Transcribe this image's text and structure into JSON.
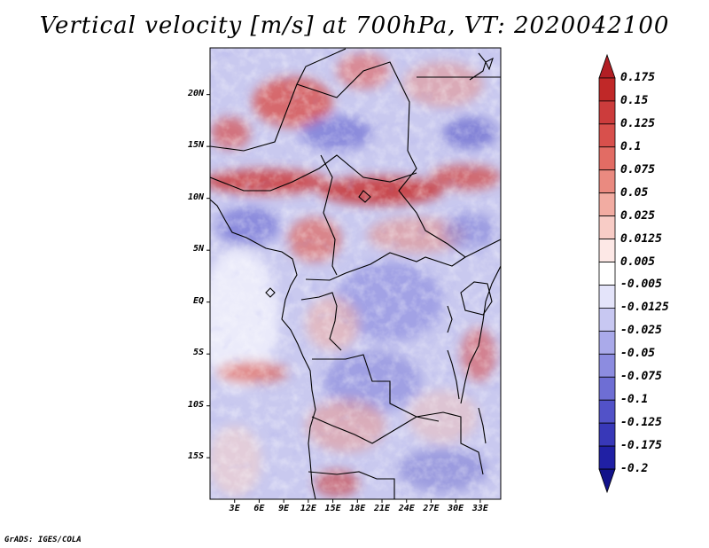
{
  "title": "Vertical velocity [m/s] at 700hPa, VT: 2020042100",
  "credit": "GrADS: IGES/COLA",
  "map": {
    "variable": "Vertical velocity",
    "units": "m/s",
    "level": "700hPa",
    "valid_time": "2020042100",
    "lat_range": [
      -19,
      24.5
    ],
    "lon_range": [
      0,
      35.5
    ],
    "lat_labels": [
      "20N",
      "15N",
      "10N",
      "5N",
      "EQ",
      "5S",
      "10S",
      "15S"
    ],
    "lon_labels": [
      "3E",
      "6E",
      "9E",
      "12E",
      "15E",
      "18E",
      "21E",
      "24E",
      "27E",
      "30E",
      "33E"
    ]
  },
  "colorbar": {
    "levels": [
      "0.175",
      "0.15",
      "0.125",
      "0.1",
      "0.075",
      "0.05",
      "0.025",
      "0.0125",
      "0.005",
      "-0.005",
      "-0.0125",
      "-0.025",
      "-0.05",
      "-0.075",
      "-0.1",
      "-0.125",
      "-0.175",
      "-0.2"
    ],
    "colors": [
      "#b21e24",
      "#c83232",
      "#d54a46",
      "#e0645c",
      "#e98377",
      "#f0a299",
      "#f6c2ba",
      "#fbe0dc",
      "#ffffff",
      "#e2e2fa",
      "#c5c5f2",
      "#a6a6ea",
      "#8787e0",
      "#6868d4",
      "#4b4bc6",
      "#3030b6",
      "#1b1ba0",
      "#101080"
    ]
  },
  "colors": {
    "rising": "#c83232",
    "sinking": "#3c3cc0",
    "neutral": "#ffffff",
    "coast": "#000000"
  }
}
